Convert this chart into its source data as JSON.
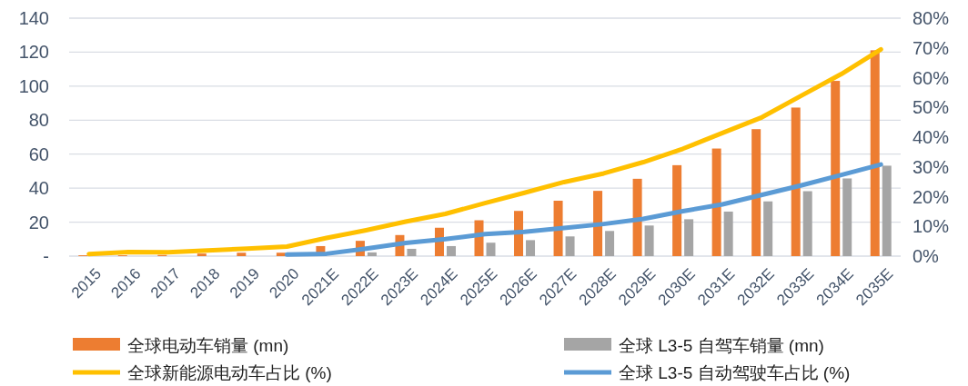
{
  "chart_data": {
    "type": "bar",
    "categories": [
      "2015",
      "2016",
      "2017",
      "2018",
      "2019",
      "2020",
      "2021E",
      "2022E",
      "2023E",
      "2024E",
      "2025E",
      "2026E",
      "2027E",
      "2028E",
      "2029E",
      "2030E",
      "2031E",
      "2032E",
      "2033E",
      "2034E",
      "2035E"
    ],
    "series": [
      {
        "name": "全球电动车销量 (mn)",
        "color": "#ed7d31",
        "values": [
          0.5,
          0.5,
          0.7,
          1.5,
          2,
          2,
          5.9,
          9,
          12.4,
          16.7,
          21.1,
          26.6,
          32.6,
          38.4,
          45.5,
          53.5,
          63.3,
          74.7,
          87.4,
          103.1,
          121.1
        ]
      },
      {
        "name": "全球 L3-5 自驾车销量 (mn)",
        "color": "#a5a5a5",
        "values": [
          0,
          0,
          0,
          0,
          0,
          null,
          null,
          2.2,
          4.3,
          5.9,
          7.9,
          9.4,
          11.6,
          14.8,
          18,
          21.7,
          26.2,
          32.2,
          38.2,
          45.7,
          53.2
        ]
      },
      {
        "name": "全球新能源电动车占比 (%)",
        "type": "line",
        "axis": "y2",
        "color": "#ffc000",
        "values": [
          0.7,
          1.4,
          1.3,
          1.9,
          2.5,
          3.2,
          6.1,
          8.7,
          11.6,
          14.2,
          17.8,
          21.3,
          24.9,
          27.8,
          31.6,
          36.1,
          41.4,
          46.7,
          54,
          61.2,
          69.5
        ]
      },
      {
        "name": "全球 L3-5 自动驾驶车占比 (%)",
        "type": "line",
        "axis": "y2",
        "color": "#5b9bd5",
        "values": [
          null,
          null,
          null,
          null,
          null,
          0.5,
          0.8,
          2.5,
          4.4,
          5.7,
          7.4,
          8.2,
          9.5,
          10.8,
          12.5,
          15.1,
          17.4,
          20.6,
          23.8,
          27.3,
          30.8
        ]
      }
    ],
    "ylim": [
      0,
      140
    ],
    "yticks": [
      {
        "value": 0,
        "label": "-"
      },
      20,
      40,
      60,
      80,
      100,
      120,
      140
    ],
    "y2lim": [
      0,
      80
    ],
    "y2ticks": [
      {
        "value": 0,
        "label": "0%"
      },
      {
        "value": 10,
        "label": "10%"
      },
      {
        "value": 20,
        "label": "20%"
      },
      {
        "value": 30,
        "label": "30%"
      },
      {
        "value": 40,
        "label": "40%"
      },
      {
        "value": 50,
        "label": "50%"
      },
      {
        "value": 60,
        "label": "60%"
      },
      {
        "value": 70,
        "label": "70%"
      },
      {
        "value": 80,
        "label": "80%"
      }
    ],
    "grid": "y",
    "legend": "bottom"
  }
}
